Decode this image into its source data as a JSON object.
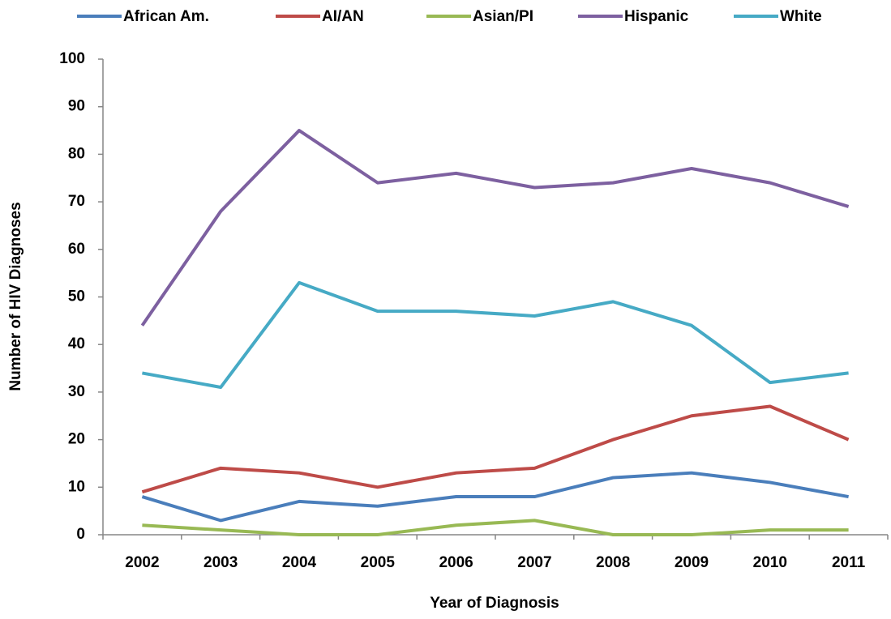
{
  "chart_data": {
    "type": "line",
    "x_label": "Year of Diagnosis",
    "y_label": "Number of HIV Diagnoses",
    "categories": [
      "2002",
      "2003",
      "2004",
      "2005",
      "2006",
      "2007",
      "2008",
      "2009",
      "2010",
      "2011"
    ],
    "series": [
      {
        "name": "African Am.",
        "color": "#4a7ebb",
        "values": [
          8,
          3,
          7,
          6,
          8,
          8,
          12,
          13,
          11,
          8
        ]
      },
      {
        "name": "AI/AN",
        "color": "#be4b48",
        "values": [
          9,
          14,
          13,
          10,
          13,
          14,
          20,
          25,
          27,
          20
        ]
      },
      {
        "name": "Asian/PI",
        "color": "#98b954",
        "values": [
          2,
          1,
          0,
          0,
          2,
          3,
          0,
          0,
          1,
          1
        ]
      },
      {
        "name": "Hispanic",
        "color": "#7d60a0",
        "values": [
          44,
          68,
          85,
          74,
          76,
          73,
          74,
          77,
          74,
          69
        ]
      },
      {
        "name": "White",
        "color": "#46aac5",
        "values": [
          34,
          31,
          53,
          47,
          47,
          46,
          49,
          44,
          32,
          34
        ]
      }
    ],
    "ylim": [
      0,
      100
    ],
    "yticks": [
      0,
      10,
      20,
      30,
      40,
      50,
      60,
      70,
      80,
      90,
      100
    ],
    "legend": "top"
  }
}
